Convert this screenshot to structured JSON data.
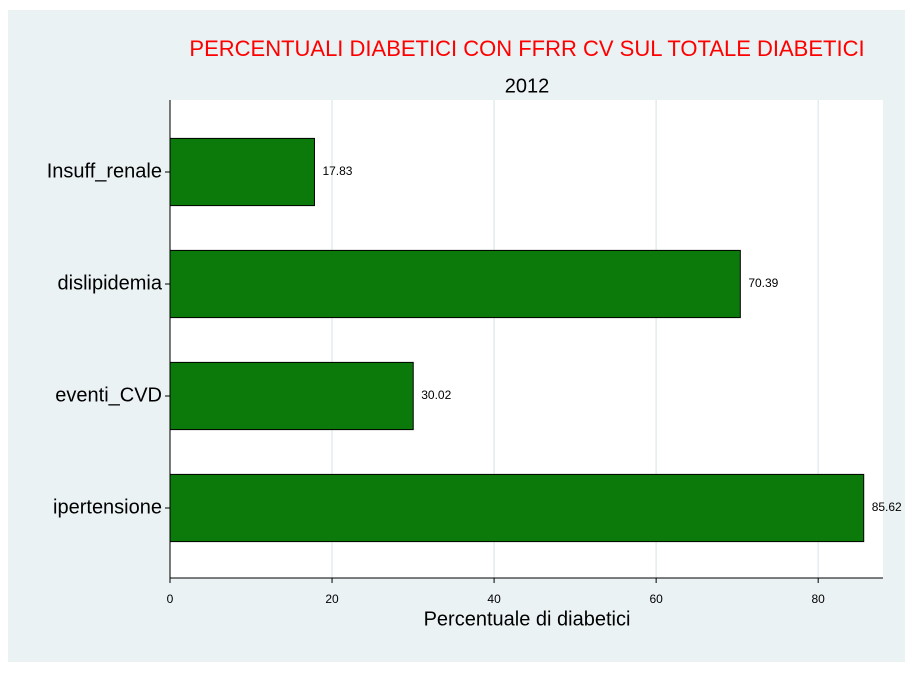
{
  "chart_data": {
    "type": "hbar",
    "title": "PERCENTUALI DIABETICI CON FFRR CV SUL TOTALE DIABETICI",
    "subtitle": "2012",
    "x_label": "Percentuale di diabetici",
    "categories": [
      "Insuff_renale",
      "dislipidemia",
      "eventi_CVD",
      "ipertensione"
    ],
    "values": [
      17.83,
      70.39,
      30.02,
      85.62
    ],
    "color": "#0b7a0b",
    "xlim": [
      0,
      88
    ],
    "xticks": [
      0,
      20,
      40,
      60,
      80
    ],
    "grid": true
  }
}
